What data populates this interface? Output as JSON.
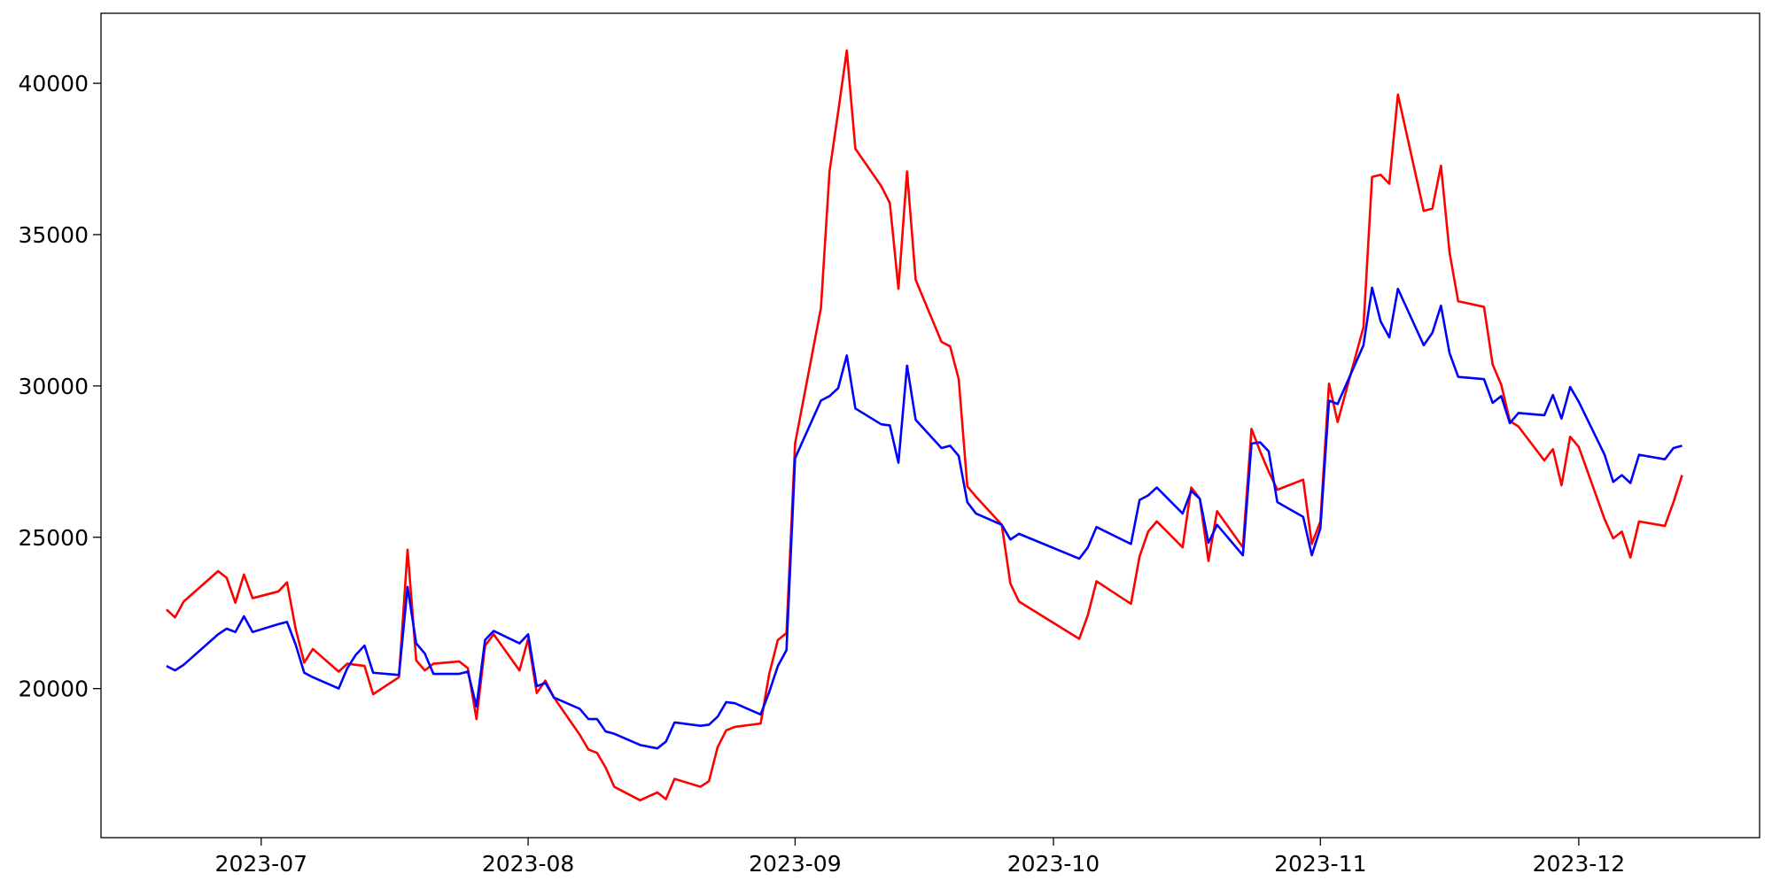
{
  "chart_data": {
    "type": "line",
    "x": [
      171,
      172,
      173,
      177,
      178,
      179,
      180,
      181,
      184,
      185,
      186,
      187,
      188,
      191,
      192,
      193,
      194,
      195,
      198,
      199,
      200,
      201,
      202,
      205,
      206,
      207,
      208,
      209,
      212,
      213,
      214,
      215,
      216,
      219,
      220,
      221,
      222,
      223,
      226,
      228,
      229,
      230,
      233,
      234,
      235,
      236,
      237,
      240,
      241,
      242,
      243,
      244,
      247,
      248,
      249,
      250,
      251,
      254,
      255,
      256,
      257,
      258,
      261,
      262,
      263,
      264,
      265,
      268,
      269,
      270,
      277,
      278,
      279,
      283,
      284,
      285,
      286,
      289,
      290,
      291,
      292,
      293,
      296,
      297,
      298,
      299,
      300,
      303,
      304,
      305,
      306,
      307,
      310,
      311,
      312,
      313,
      314,
      317,
      318,
      319,
      320,
      321,
      324,
      325,
      326,
      327,
      328,
      331,
      332,
      333,
      334,
      335,
      338,
      339,
      340,
      341,
      342,
      345,
      346,
      347
    ],
    "series": [
      {
        "color": "#ff0000",
        "values": [
          22614,
          22352,
          22875,
          23881,
          23657,
          22837,
          23770,
          22987,
          23210,
          23508,
          21979,
          20860,
          21308,
          20561,
          20823,
          20785,
          20748,
          19815,
          20375,
          24590,
          20934,
          20598,
          20823,
          20897,
          20673,
          18994,
          21420,
          21793,
          20598,
          21644,
          19853,
          20263,
          19703,
          18472,
          17987,
          17875,
          17390,
          16756,
          16309,
          16570,
          16346,
          17017,
          16756,
          16943,
          18062,
          18621,
          18733,
          18845,
          20487,
          21607,
          21831,
          28098,
          32575,
          37090,
          39050,
          41082,
          37836,
          36605,
          36045,
          33210,
          37090,
          33508,
          31456,
          31307,
          30225,
          26680,
          26344,
          25412,
          23471,
          22875,
          21644,
          22427,
          23546,
          22800,
          24367,
          25188,
          25524,
          24666,
          26643,
          26270,
          24218,
          25860,
          24666,
          28583,
          27837,
          27166,
          26569,
          26904,
          24778,
          25524,
          30076,
          28807,
          31941,
          36903,
          36978,
          36680,
          39627,
          35784,
          35859,
          37276,
          34404,
          32799,
          32613,
          30710,
          30038,
          28844,
          28658,
          27539,
          27912,
          26718,
          28322,
          27986,
          25599,
          24964,
          25188,
          24330,
          25524,
          25375,
          26158,
          27054
        ]
      },
      {
        "color": "#0000ff",
        "values": [
          20748,
          20600,
          20785,
          21793,
          21980,
          21868,
          22390,
          21868,
          22129,
          22203,
          21457,
          20524,
          20375,
          20002,
          20673,
          21121,
          21420,
          20524,
          20449,
          23359,
          21495,
          21159,
          20487,
          20487,
          20561,
          19405,
          21607,
          21905,
          21495,
          21793,
          20076,
          20188,
          19703,
          19330,
          18994,
          18994,
          18584,
          18509,
          18136,
          18024,
          18248,
          18882,
          18770,
          18808,
          19069,
          19554,
          19517,
          19144,
          19890,
          20748,
          21271,
          27613,
          29516,
          29665,
          29926,
          31008,
          29255,
          28732,
          28695,
          27464,
          30672,
          28882,
          27949,
          28024,
          27688,
          26158,
          25785,
          25412,
          24926,
          25114,
          24293,
          24666,
          25338,
          24778,
          26233,
          26382,
          26643,
          25785,
          26531,
          26270,
          24815,
          25412,
          24405,
          28098,
          28136,
          27837,
          26158,
          25673,
          24405,
          25300,
          29516,
          29404,
          31344,
          33247,
          32127,
          31605,
          33210,
          31344,
          31755,
          32650,
          31083,
          30300,
          30225,
          29441,
          29665,
          28770,
          29106,
          29031,
          29702,
          28919,
          29964,
          29479,
          27725,
          26829,
          27053,
          26792,
          27725,
          27576,
          27949,
          28024
        ]
      }
    ],
    "xlim": [
      163.4,
      356
    ],
    "xticks": [
      {
        "value": 182,
        "label": "2023-07"
      },
      {
        "value": 213,
        "label": "2023-08"
      },
      {
        "value": 244,
        "label": "2023-09"
      },
      {
        "value": 274,
        "label": "2023-10"
      },
      {
        "value": 305,
        "label": "2023-11"
      },
      {
        "value": 335,
        "label": "2023-12"
      }
    ],
    "ylim": [
      15075,
      42313
    ],
    "yticks": [
      20000,
      25000,
      30000,
      35000,
      40000
    ],
    "grid": false
  }
}
